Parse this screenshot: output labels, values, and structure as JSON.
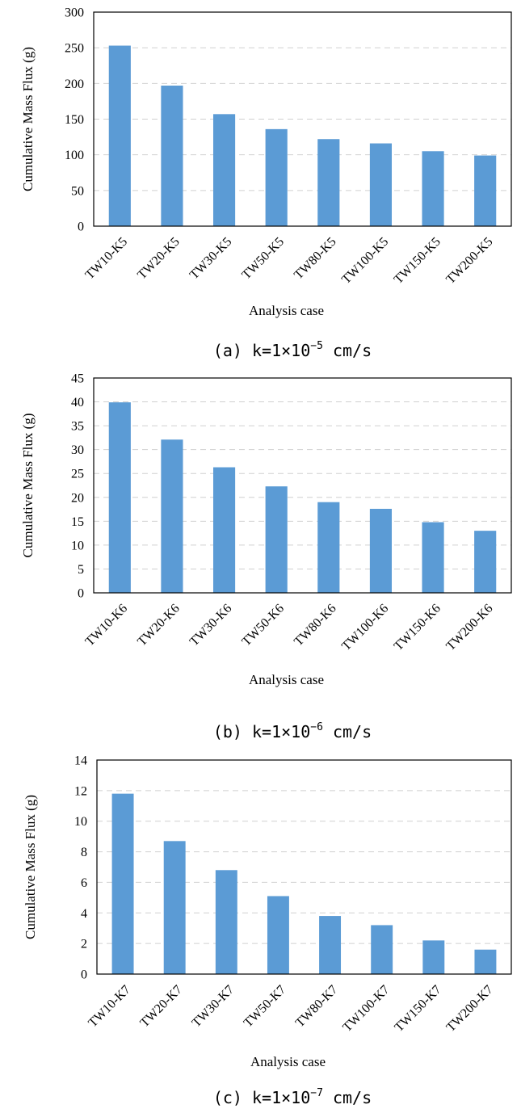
{
  "chart_data": [
    {
      "type": "bar",
      "categories": [
        "TW10-K5",
        "TW20-K5",
        "TW30-K5",
        "TW50-K5",
        "TW80-K5",
        "TW100-K5",
        "TW150-K5",
        "TW200-K5"
      ],
      "values": [
        253,
        197,
        157,
        136,
        122,
        116,
        105,
        99
      ],
      "ylabel": "Cumulative Mass Flux (g)",
      "xlabel": "Analysis case",
      "ylim": [
        0,
        300
      ],
      "yticks": [
        0,
        50,
        100,
        150,
        200,
        250,
        300
      ],
      "grid": true,
      "caption": {
        "prefix": "(a) k=1×10",
        "exponent": "−5",
        "suffix": " cm/s"
      }
    },
    {
      "type": "bar",
      "categories": [
        "TW10-K6",
        "TW20-K6",
        "TW30-K6",
        "TW50-K6",
        "TW80-K6",
        "TW100-K6",
        "TW150-K6",
        "TW200-K6"
      ],
      "values": [
        39.9,
        32.1,
        26.3,
        22.3,
        19.0,
        17.6,
        14.8,
        13.0
      ],
      "ylabel": "Cumulative Mass Flux (g)",
      "xlabel": "Analysis case",
      "ylim": [
        0,
        45
      ],
      "yticks": [
        0,
        5,
        10,
        15,
        20,
        25,
        30,
        35,
        40,
        45
      ],
      "grid": true,
      "caption": {
        "prefix": "(b) k=1×10",
        "exponent": "−6",
        "suffix": " cm/s"
      }
    },
    {
      "type": "bar",
      "categories": [
        "TW10-K7",
        "TW20-K7",
        "TW30-K7",
        "TW50-K7",
        "TW80-K7",
        "TW100-K7",
        "TW150-K7",
        "TW200-K7"
      ],
      "values": [
        11.8,
        8.7,
        6.8,
        5.1,
        3.8,
        3.2,
        2.2,
        1.6
      ],
      "ylabel": "Cumulative Mass Flux (g)",
      "xlabel": "Analysis case",
      "ylim": [
        0,
        14
      ],
      "yticks": [
        0,
        2,
        4,
        6,
        8,
        10,
        12,
        14
      ],
      "grid": true,
      "caption": {
        "prefix": "(c) k=1×10",
        "exponent": "−7",
        "suffix": " cm/s"
      }
    }
  ]
}
